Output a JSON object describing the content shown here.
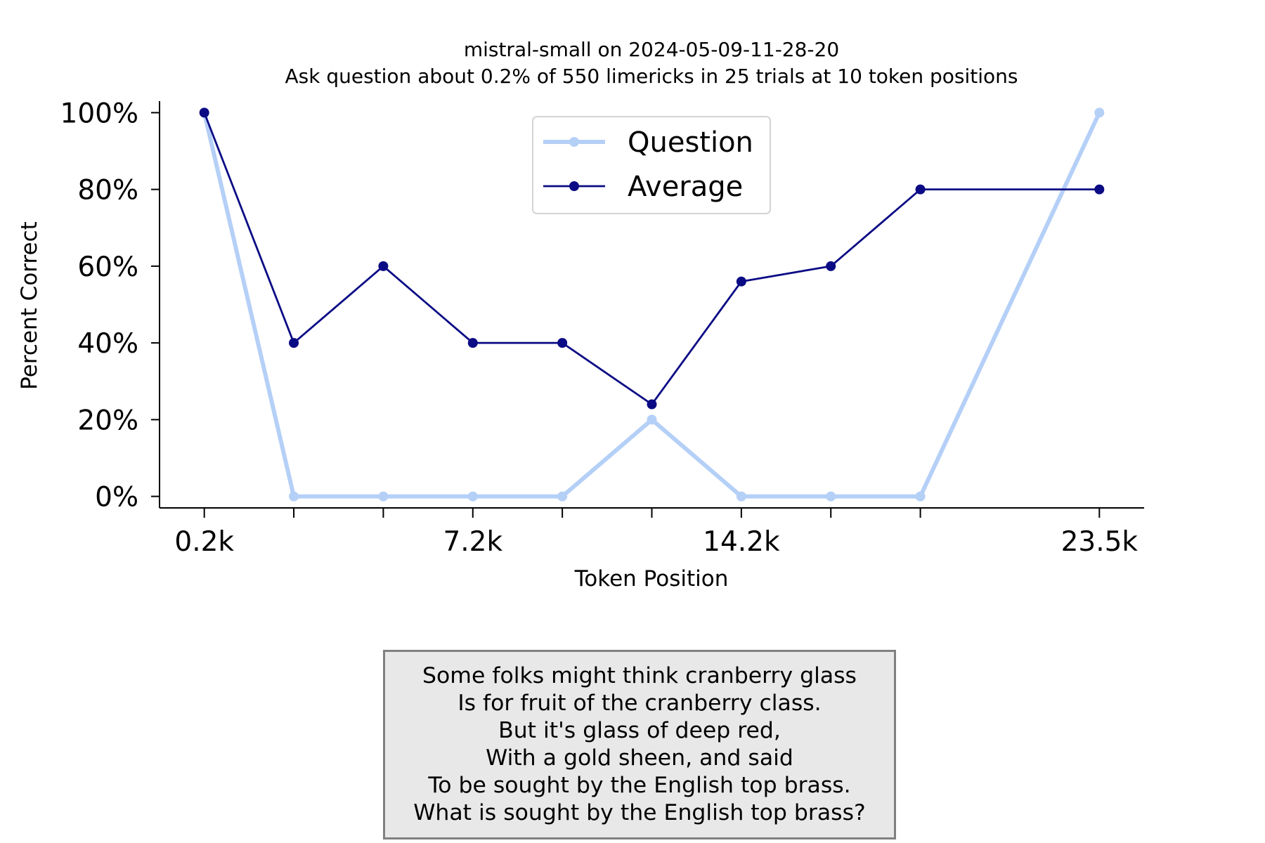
{
  "chart_data": {
    "type": "line",
    "title_lines": [
      "mistral-small on 2024-05-09-11-28-20",
      "Ask question about 0.2% of 550 limericks in 25 trials at 10 token positions"
    ],
    "xlabel": "Token Position",
    "ylabel": "Percent Correct",
    "x": [
      1,
      2,
      3,
      4,
      5,
      6,
      7,
      8,
      9,
      11
    ],
    "x_tick_labels": [
      {
        "x": 1,
        "label": "0.2k"
      },
      {
        "x": 4,
        "label": "7.2k"
      },
      {
        "x": 7,
        "label": "14.2k"
      },
      {
        "x": 11,
        "label": "23.5k"
      }
    ],
    "xlim": [
      0.5,
      11.5
    ],
    "ylim": [
      -0.03,
      1.03
    ],
    "y_ticks": [
      0,
      0.2,
      0.4,
      0.6,
      0.8,
      1.0
    ],
    "y_tick_labels": [
      "0%",
      "20%",
      "40%",
      "60%",
      "80%",
      "100%"
    ],
    "series": [
      {
        "name": "Question",
        "color": "#b5d0f7",
        "values": [
          1.0,
          0,
          0,
          0,
          0,
          0.2,
          0,
          0,
          0,
          1.0
        ]
      },
      {
        "name": "Average",
        "color": "#0b0b85",
        "values": [
          1.0,
          0.4,
          0.6,
          0.4,
          0.4,
          0.24,
          0.56,
          0.6,
          0.8,
          0.8
        ]
      }
    ],
    "legend_position": "top-center",
    "grid": false
  },
  "note": {
    "lines": [
      "Some folks might think cranberry glass",
      "Is for fruit of the cranberry class.",
      "But it's glass of deep red,",
      "With a gold sheen, and said",
      "To be sought by the English top brass.",
      "What is sought by the English top brass?"
    ]
  }
}
